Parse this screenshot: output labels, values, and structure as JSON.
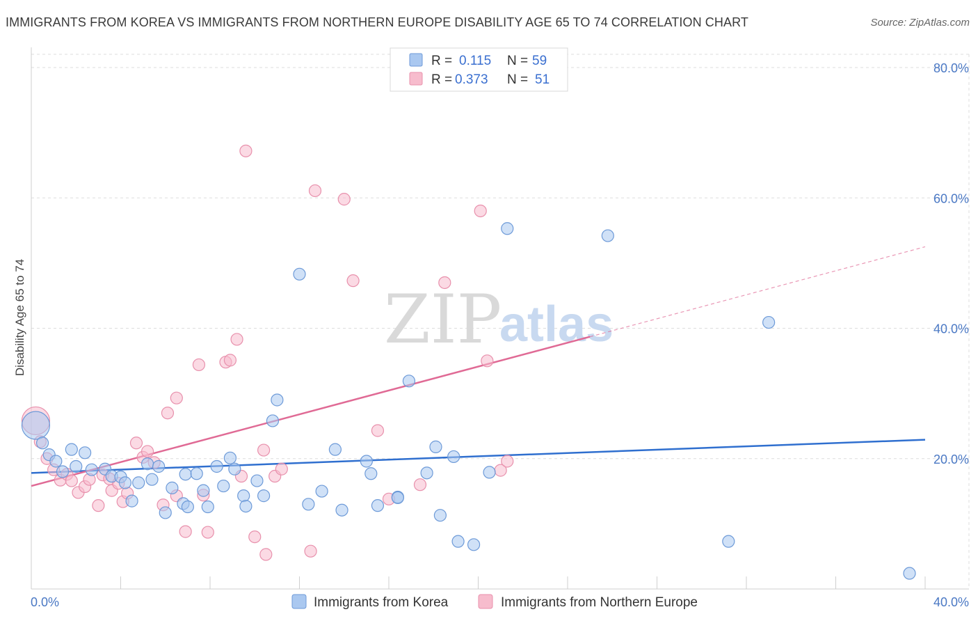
{
  "title": "IMMIGRANTS FROM KOREA VS IMMIGRANTS FROM NORTHERN EUROPE DISABILITY AGE 65 TO 74 CORRELATION CHART",
  "source": "Source: ZipAtlas.com",
  "watermark": {
    "zip": "ZIP",
    "atlas": "atlas"
  },
  "colors": {
    "korea_fill": "#aac8f0",
    "korea_stroke": "#6d9ad8",
    "korea_line": "#2f6fcf",
    "europe_fill": "#f7bccd",
    "europe_stroke": "#e890ac",
    "europe_line": "#e06a95",
    "grid": "#dddddd",
    "tick_text": "#4a78c4"
  },
  "legend": {
    "rows": [
      {
        "r_label": "R =",
        "r_value": "0.115",
        "n_label": "N =",
        "n_value": "59"
      },
      {
        "r_label": "R =",
        "r_value": "0.373",
        "n_label": "N =",
        "n_value": "51"
      }
    ]
  },
  "chart_data": {
    "type": "scatter",
    "xlabel": "",
    "ylabel": "Disability Age 65 to 74",
    "xlim": [
      0,
      40
    ],
    "ylim": [
      0,
      80
    ],
    "x_tick_labels": [
      {
        "value": 0,
        "label": "0.0%"
      },
      {
        "value": 40,
        "label": "40.0%"
      }
    ],
    "y_tick_labels": [
      {
        "value": 20,
        "label": "20.0%"
      },
      {
        "value": 40,
        "label": "40.0%"
      },
      {
        "value": 60,
        "label": "60.0%"
      },
      {
        "value": 80,
        "label": "80.0%"
      }
    ],
    "grid": true,
    "legend_position": "top-center",
    "series": [
      {
        "name": "Immigrants from Korea",
        "trend": {
          "x": [
            0,
            40
          ],
          "y": [
            17.8,
            22.9
          ],
          "extrapolated": false
        },
        "points": [
          {
            "x": 0.2,
            "y": 25.1,
            "big": true
          },
          {
            "x": 0.5,
            "y": 22.4
          },
          {
            "x": 0.8,
            "y": 20.6
          },
          {
            "x": 1.1,
            "y": 19.6
          },
          {
            "x": 1.4,
            "y": 18.0
          },
          {
            "x": 1.8,
            "y": 21.4
          },
          {
            "x": 2.0,
            "y": 18.8
          },
          {
            "x": 2.4,
            "y": 20.9
          },
          {
            "x": 2.7,
            "y": 18.3
          },
          {
            "x": 3.3,
            "y": 18.4
          },
          {
            "x": 3.6,
            "y": 17.3
          },
          {
            "x": 4.0,
            "y": 17.2
          },
          {
            "x": 4.2,
            "y": 16.3
          },
          {
            "x": 4.5,
            "y": 13.5
          },
          {
            "x": 4.8,
            "y": 16.3
          },
          {
            "x": 5.2,
            "y": 19.2
          },
          {
            "x": 5.4,
            "y": 16.8
          },
          {
            "x": 5.7,
            "y": 18.8
          },
          {
            "x": 6.0,
            "y": 11.7
          },
          {
            "x": 6.3,
            "y": 15.5
          },
          {
            "x": 6.8,
            "y": 13.1
          },
          {
            "x": 6.9,
            "y": 17.6
          },
          {
            "x": 7.0,
            "y": 12.6
          },
          {
            "x": 7.4,
            "y": 17.7
          },
          {
            "x": 7.7,
            "y": 15.1
          },
          {
            "x": 7.9,
            "y": 12.6
          },
          {
            "x": 8.3,
            "y": 18.8
          },
          {
            "x": 8.6,
            "y": 15.8
          },
          {
            "x": 8.9,
            "y": 20.1
          },
          {
            "x": 9.1,
            "y": 18.4
          },
          {
            "x": 9.5,
            "y": 14.3
          },
          {
            "x": 9.6,
            "y": 12.7
          },
          {
            "x": 10.1,
            "y": 16.6
          },
          {
            "x": 10.4,
            "y": 14.3
          },
          {
            "x": 10.8,
            "y": 25.8
          },
          {
            "x": 11.0,
            "y": 29.0
          },
          {
            "x": 12.0,
            "y": 48.3
          },
          {
            "x": 12.4,
            "y": 13.0
          },
          {
            "x": 13.0,
            "y": 15.0
          },
          {
            "x": 13.6,
            "y": 21.4
          },
          {
            "x": 13.9,
            "y": 12.1
          },
          {
            "x": 15.0,
            "y": 19.6
          },
          {
            "x": 15.2,
            "y": 17.7
          },
          {
            "x": 15.5,
            "y": 12.8
          },
          {
            "x": 16.4,
            "y": 14.1
          },
          {
            "x": 16.9,
            "y": 31.9
          },
          {
            "x": 17.7,
            "y": 17.8
          },
          {
            "x": 18.1,
            "y": 21.8
          },
          {
            "x": 18.3,
            "y": 11.3
          },
          {
            "x": 18.9,
            "y": 20.3
          },
          {
            "x": 19.1,
            "y": 7.3
          },
          {
            "x": 19.8,
            "y": 6.8
          },
          {
            "x": 20.5,
            "y": 17.9
          },
          {
            "x": 21.3,
            "y": 55.3
          },
          {
            "x": 25.8,
            "y": 54.2
          },
          {
            "x": 31.2,
            "y": 7.3
          },
          {
            "x": 33.0,
            "y": 40.9
          },
          {
            "x": 39.3,
            "y": 2.4
          },
          {
            "x": 16.4,
            "y": 14.0
          }
        ]
      },
      {
        "name": "Immigrants from Northern Europe",
        "trend": {
          "x": [
            0,
            25
          ],
          "y": [
            15.8,
            38.7
          ],
          "extrapolated_to": {
            "x": 40,
            "y": 52.5
          }
        },
        "points": [
          {
            "x": 0.2,
            "y": 25.8,
            "big": true
          },
          {
            "x": 0.4,
            "y": 22.6
          },
          {
            "x": 0.7,
            "y": 20.0
          },
          {
            "x": 1.0,
            "y": 18.3
          },
          {
            "x": 1.3,
            "y": 16.7
          },
          {
            "x": 1.6,
            "y": 17.6
          },
          {
            "x": 1.8,
            "y": 16.6
          },
          {
            "x": 2.1,
            "y": 14.8
          },
          {
            "x": 2.4,
            "y": 15.7
          },
          {
            "x": 2.6,
            "y": 16.8
          },
          {
            "x": 3.0,
            "y": 12.8
          },
          {
            "x": 3.2,
            "y": 17.5
          },
          {
            "x": 3.5,
            "y": 16.9
          },
          {
            "x": 3.6,
            "y": 15.1
          },
          {
            "x": 3.9,
            "y": 16.2
          },
          {
            "x": 4.1,
            "y": 13.4
          },
          {
            "x": 4.3,
            "y": 14.7
          },
          {
            "x": 4.7,
            "y": 22.4
          },
          {
            "x": 5.0,
            "y": 20.2
          },
          {
            "x": 5.2,
            "y": 21.1
          },
          {
            "x": 5.5,
            "y": 19.4
          },
          {
            "x": 5.9,
            "y": 12.9
          },
          {
            "x": 6.1,
            "y": 27.0
          },
          {
            "x": 6.5,
            "y": 14.3
          },
          {
            "x": 6.5,
            "y": 29.3
          },
          {
            "x": 6.9,
            "y": 8.8
          },
          {
            "x": 7.5,
            "y": 34.4
          },
          {
            "x": 7.7,
            "y": 14.4
          },
          {
            "x": 7.9,
            "y": 8.7
          },
          {
            "x": 8.7,
            "y": 34.8
          },
          {
            "x": 8.9,
            "y": 35.1
          },
          {
            "x": 9.2,
            "y": 38.3
          },
          {
            "x": 9.4,
            "y": 17.3
          },
          {
            "x": 10.0,
            "y": 8.0
          },
          {
            "x": 10.4,
            "y": 21.3
          },
          {
            "x": 10.5,
            "y": 5.3
          },
          {
            "x": 10.9,
            "y": 17.3
          },
          {
            "x": 11.2,
            "y": 18.4
          },
          {
            "x": 12.5,
            "y": 5.8
          },
          {
            "x": 12.7,
            "y": 61.1
          },
          {
            "x": 14.0,
            "y": 59.8
          },
          {
            "x": 14.4,
            "y": 47.3
          },
          {
            "x": 9.6,
            "y": 67.2
          },
          {
            "x": 15.5,
            "y": 24.3
          },
          {
            "x": 16.0,
            "y": 13.8
          },
          {
            "x": 17.4,
            "y": 16.0
          },
          {
            "x": 18.5,
            "y": 47.0
          },
          {
            "x": 20.1,
            "y": 58.0
          },
          {
            "x": 20.4,
            "y": 35.0
          },
          {
            "x": 21.0,
            "y": 18.2
          },
          {
            "x": 21.3,
            "y": 19.6
          }
        ]
      }
    ]
  },
  "bottom_legend": [
    {
      "label": "Immigrants from Korea"
    },
    {
      "label": "Immigrants from Northern Europe"
    }
  ]
}
